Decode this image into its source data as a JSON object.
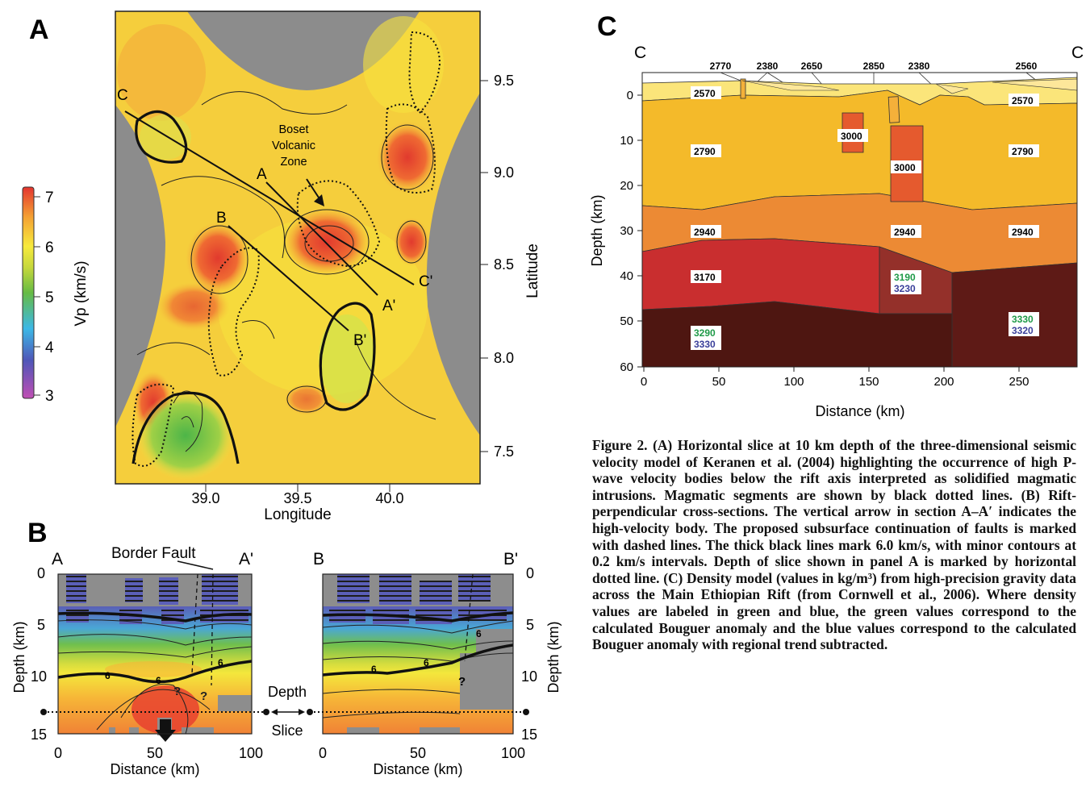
{
  "panel_labels": {
    "a": "A",
    "b": "B",
    "c": "C"
  },
  "panel_a": {
    "colorbar": {
      "label": "Vp (km/s)",
      "ticks": [
        "7",
        "6",
        "5",
        "4",
        "3"
      ]
    },
    "lat_label": "Latitude",
    "lon_label": "Longitude",
    "lat_ticks": [
      "9.5",
      "9.0",
      "8.5",
      "8.0",
      "7.5"
    ],
    "lon_ticks": [
      "39.0",
      "39.5",
      "40.0"
    ],
    "annotation": [
      "Boset",
      "Volcanic",
      "Zone"
    ],
    "line_labels": {
      "C": "C",
      "A": "A",
      "B": "B",
      "C_prime": "C'",
      "A_prime": "A'",
      "B_prime": "B'"
    }
  },
  "panel_b": {
    "section1": {
      "left": "A",
      "right": "A'"
    },
    "section2": {
      "left": "B",
      "right": "B'"
    },
    "border_fault": "Border Fault",
    "depth_label": "Depth (km)",
    "depth_ticks": [
      "0",
      "5",
      "10",
      "15"
    ],
    "dist_ticks": [
      "0",
      "50",
      "100"
    ],
    "dist_label": "Distance (km)",
    "middle": [
      "Depth",
      "Slice"
    ],
    "contour_label": "6",
    "question": "?"
  },
  "panel_c": {
    "title_left": "C",
    "title_right": "C",
    "top_values": [
      "2770",
      "2380",
      "2650",
      "2850",
      "2380",
      "2560"
    ],
    "ylabel": "Depth (km)",
    "xlabel": "Distance (km)",
    "y_ticks": [
      "0",
      "10",
      "20",
      "30",
      "40",
      "50",
      "60"
    ],
    "x_ticks": [
      "0",
      "50",
      "100",
      "150",
      "200",
      "250"
    ],
    "labels": {
      "l2570a": "2570",
      "l2570b": "2570",
      "l3000a": "3000",
      "l3000b": "3000",
      "l2790a": "2790",
      "l2790b": "2790",
      "l2940a": "2940",
      "l2940b": "2940",
      "l2940c": "2940",
      "l3170": "3170",
      "l3190": "3190",
      "l3230": "3230",
      "l3330a": "3330",
      "l3320": "3320",
      "l3290": "3290",
      "l3330b": "3330"
    }
  },
  "caption": {
    "lead": "Figure 2.",
    "text": "(A) Horizontal slice at 10 km depth of the three-dimensional seismic velocity model of Keranen et al. (2004) highlighting the occurrence of high P-wave velocity bodies below the rift axis interpreted as solidified magmatic intrusions. Magmatic segments are shown by black dotted lines. (B) Rift-perpendicular cross-sections. The vertical arrow in section A–A′ indicates the high-velocity body. The proposed subsurface continuation of faults is marked with dashed lines. The thick black lines mark 6.0 km/s, with minor contours at 0.2 km/s intervals. Depth of slice shown in panel A is marked by horizontal dotted line. (C) Density model (values in kg/m³) from high-precision gravity data across the Main Ethiopian Rift (from Cornwell et al., 2006). Where density values are labeled in green and blue, the green values correspond to the calculated Bouguer anomaly and the blue values correspond to the calculated Bouguer anomaly with regional trend subtracted."
  },
  "colors": {
    "green_value": "#1f9a48",
    "blue_value": "#3a3f9a",
    "gray": "#8c8c8c"
  }
}
